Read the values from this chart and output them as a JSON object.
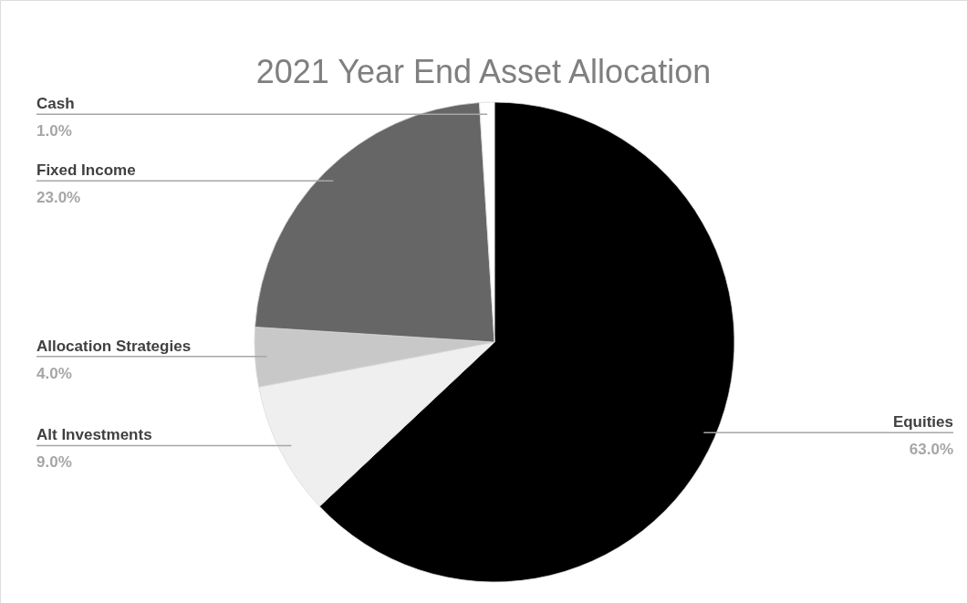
{
  "chart_data": {
    "type": "pie",
    "title": "2021 Year End Asset Allocation",
    "categories": [
      "Equities",
      "Alt Investments",
      "Allocation Strategies",
      "Fixed Income",
      "Cash"
    ],
    "values": [
      63,
      9,
      4,
      23,
      1
    ],
    "colors": [
      "#000000",
      "#efefef",
      "#c8c8c8",
      "#666666",
      "#ffffff"
    ],
    "value_labels": [
      "63.0%",
      "9.0%",
      "4.0%",
      "23.0%",
      "1.0%"
    ]
  }
}
